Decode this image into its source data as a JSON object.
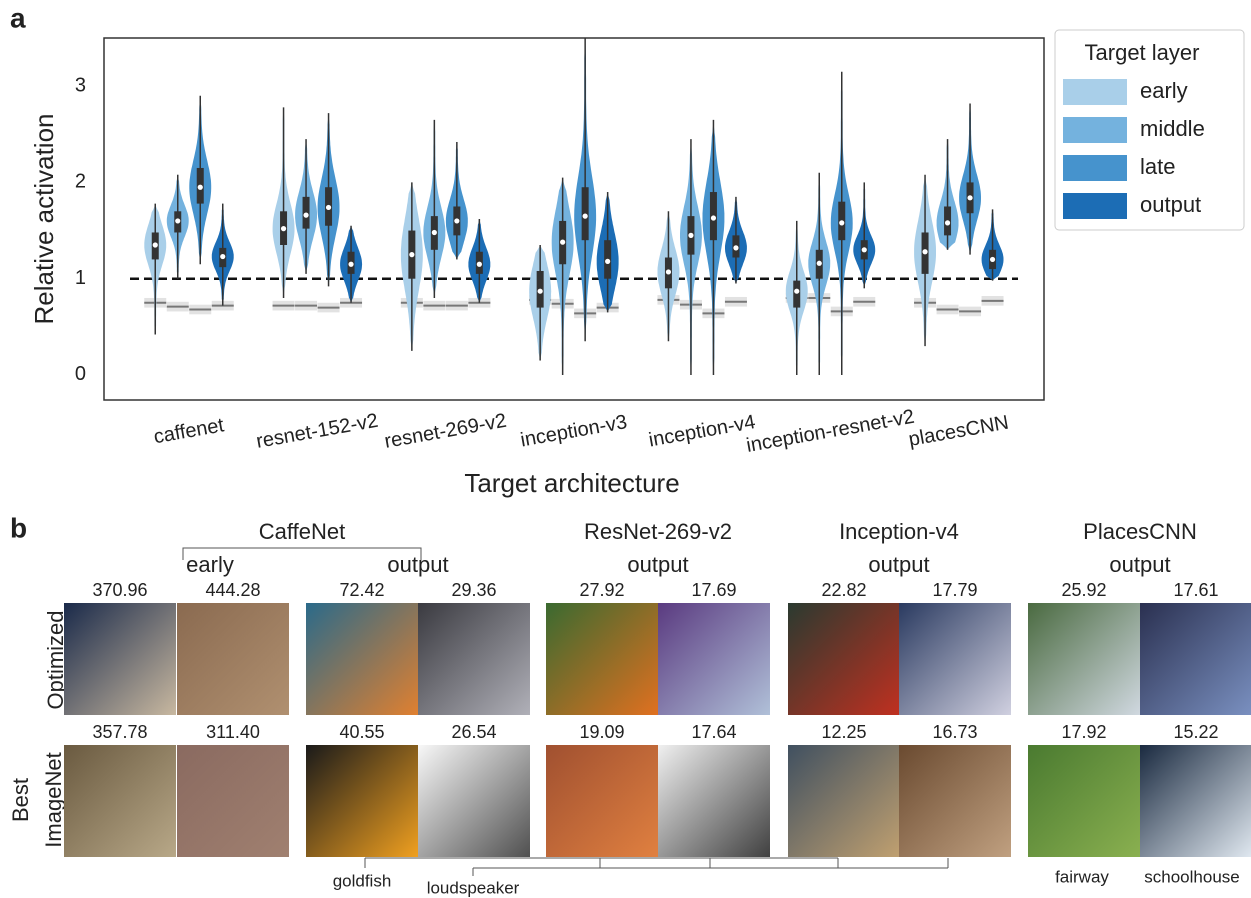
{
  "panel_a_label": "a",
  "chart_data": {
    "type": "violin",
    "ylabel": "Relative activation",
    "xlabel": "Target architecture",
    "categories": [
      "caffenet",
      "resnet-152-v2",
      "resnet-269-v2",
      "inception-v3",
      "inception-v4",
      "inception-resnet-v2",
      "placesCNN"
    ],
    "ylim": [
      -0.26,
      3.5
    ],
    "yticks": [
      0,
      1,
      2,
      3
    ],
    "reference_line": 1,
    "legend_title": "Target layer",
    "legend_position": "right",
    "series": [
      {
        "name": "early",
        "color": "#a9cfe9",
        "min": [
          0.42,
          0.8,
          0.25,
          0.15,
          0.35,
          0.0,
          0.3
        ],
        "q1": [
          1.2,
          1.35,
          1.0,
          0.7,
          0.9,
          0.7,
          1.05
        ],
        "median": [
          1.35,
          1.52,
          1.25,
          0.87,
          1.07,
          0.87,
          1.28
        ],
        "q3": [
          1.48,
          1.7,
          1.5,
          1.08,
          1.22,
          0.98,
          1.48
        ],
        "max": [
          1.78,
          2.78,
          2.0,
          1.35,
          1.7,
          1.6,
          2.08
        ],
        "baseline": [
          0.75,
          0.72,
          0.75,
          0.78,
          0.78,
          0.8,
          0.75
        ]
      },
      {
        "name": "middle",
        "color": "#74b2de",
        "min": [
          1.0,
          1.05,
          0.8,
          0.0,
          0.0,
          0.0,
          1.3
        ],
        "q1": [
          1.48,
          1.52,
          1.3,
          1.15,
          1.25,
          1.0,
          1.45
        ],
        "median": [
          1.6,
          1.66,
          1.48,
          1.38,
          1.45,
          1.16,
          1.58
        ],
        "q3": [
          1.7,
          1.85,
          1.65,
          1.6,
          1.65,
          1.3,
          1.75
        ],
        "max": [
          2.08,
          2.45,
          2.65,
          2.05,
          2.45,
          2.1,
          2.45
        ],
        "baseline": [
          0.71,
          0.72,
          0.72,
          0.74,
          0.73,
          0.8,
          0.68
        ]
      },
      {
        "name": "late",
        "color": "#4693cd",
        "min": [
          1.15,
          0.92,
          1.2,
          0.35,
          0.0,
          0.0,
          1.25
        ],
        "q1": [
          1.78,
          1.55,
          1.45,
          1.4,
          1.4,
          1.4,
          1.68
        ],
        "median": [
          1.95,
          1.74,
          1.6,
          1.65,
          1.63,
          1.58,
          1.84
        ],
        "q3": [
          2.15,
          1.95,
          1.75,
          1.95,
          1.9,
          1.8,
          2.0
        ],
        "max": [
          2.9,
          2.72,
          2.42,
          3.5,
          2.65,
          3.15,
          2.82
        ],
        "baseline": [
          0.68,
          0.7,
          0.72,
          0.64,
          0.64,
          0.66,
          0.66
        ]
      },
      {
        "name": "output",
        "color": "#1c6db5",
        "min": [
          0.72,
          0.75,
          0.75,
          0.65,
          0.95,
          0.9,
          0.98
        ],
        "q1": [
          1.12,
          1.05,
          1.05,
          1.0,
          1.22,
          1.2,
          1.1
        ],
        "median": [
          1.23,
          1.15,
          1.15,
          1.18,
          1.32,
          1.3,
          1.2
        ],
        "q3": [
          1.32,
          1.28,
          1.28,
          1.4,
          1.45,
          1.4,
          1.3
        ],
        "max": [
          1.78,
          1.55,
          1.62,
          1.9,
          1.85,
          2.0,
          1.72
        ],
        "baseline": [
          0.72,
          0.75,
          0.75,
          0.7,
          0.76,
          0.76,
          0.77
        ]
      }
    ]
  },
  "panel_b": {
    "label": "b",
    "groups": [
      {
        "title": "CaffeNet",
        "sublabels": [
          "early",
          "output"
        ]
      },
      {
        "title": "ResNet-269-v2",
        "sublabels": [
          "output"
        ]
      },
      {
        "title": "Inception-v4",
        "sublabels": [
          "output"
        ]
      },
      {
        "title": "PlacesCNN",
        "sublabels": [
          "output"
        ]
      }
    ],
    "rows": [
      {
        "label": [
          "Optimized"
        ],
        "scores": [
          "370.96",
          "444.28",
          "72.42",
          "29.36",
          "27.92",
          "17.69",
          "22.82",
          "17.79",
          "25.92",
          "17.61"
        ]
      },
      {
        "label": [
          "Best",
          "ImageNet"
        ],
        "scores": [
          "357.78",
          "311.40",
          "40.55",
          "26.54",
          "19.09",
          "17.64",
          "12.25",
          "16.73",
          "17.92",
          "15.22"
        ]
      }
    ],
    "classes": [
      "goldfish",
      "loudspeaker",
      "fairway",
      "schoolhouse"
    ]
  }
}
